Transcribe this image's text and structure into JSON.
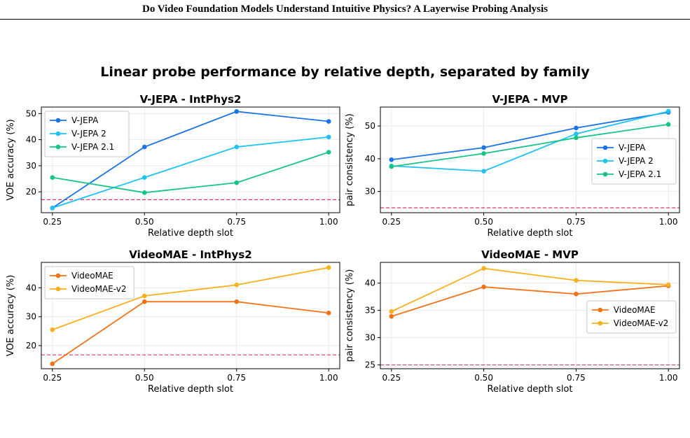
{
  "paper": {
    "header": "Do Video Foundation Models Understand Intuitive Physics? A Layerwise Probing Analysis",
    "caption": ""
  },
  "figure": {
    "suptitle": "Linear probe performance by relative depth, separated by family"
  },
  "chart_data": [
    {
      "type": "line",
      "title": "V-JEPA - IntPhys2",
      "xlabel": "Relative depth slot",
      "ylabel": "VOE accuracy (%)",
      "x": [
        0.25,
        0.5,
        0.75,
        1.0
      ],
      "x_ticks": [
        "0.25",
        "0.50",
        "0.75",
        "1.00"
      ],
      "y_ticks": [
        20,
        30,
        40,
        50
      ],
      "xlim": [
        0.22,
        1.03
      ],
      "ylim": [
        12,
        52.5
      ],
      "chance_line": 17,
      "legend_position": "upper-left",
      "grid": true,
      "series": [
        {
          "name": "V-JEPA",
          "color": "#1a73e8",
          "values": [
            13.8,
            37.2,
            50.8,
            47.0
          ]
        },
        {
          "name": "V-JEPA 2",
          "color": "#1ec3f2",
          "values": [
            13.8,
            25.5,
            37.2,
            41.0
          ]
        },
        {
          "name": "V-JEPA 2.1",
          "color": "#17c486",
          "values": [
            25.5,
            19.7,
            23.5,
            35.2
          ]
        }
      ]
    },
    {
      "type": "line",
      "title": "V-JEPA - MVP",
      "xlabel": "Relative depth slot",
      "ylabel": "pair consistency (%)",
      "x": [
        0.25,
        0.5,
        0.75,
        1.0
      ],
      "x_ticks": [
        "0.25",
        "0.50",
        "0.75",
        "1.00"
      ],
      "y_ticks": [
        30,
        40,
        50
      ],
      "xlim": [
        0.22,
        1.03
      ],
      "ylim": [
        23.5,
        55.8
      ],
      "chance_line": 25,
      "legend_position": "center-right",
      "grid": true,
      "series": [
        {
          "name": "V-JEPA",
          "color": "#1a73e8",
          "values": [
            39.7,
            43.4,
            49.4,
            54.2
          ]
        },
        {
          "name": "V-JEPA 2",
          "color": "#1ec3f2",
          "values": [
            37.8,
            36.2,
            47.6,
            54.5
          ]
        },
        {
          "name": "V-JEPA 2.1",
          "color": "#17c486",
          "values": [
            37.6,
            41.6,
            46.4,
            50.5
          ]
        }
      ]
    },
    {
      "type": "line",
      "title": "VideoMAE - IntPhys2",
      "xlabel": "Relative depth slot",
      "ylabel": "VOE accuracy (%)",
      "x": [
        0.25,
        0.5,
        0.75,
        1.0
      ],
      "x_ticks": [
        "0.25",
        "0.50",
        "0.75",
        "1.00"
      ],
      "y_ticks": [
        20,
        30,
        40
      ],
      "xlim": [
        0.22,
        1.03
      ],
      "ylim": [
        12,
        48.8
      ],
      "chance_line": 16.8,
      "legend_position": "upper-left",
      "grid": true,
      "series": [
        {
          "name": "VideoMAE",
          "color": "#f47216",
          "values": [
            13.7,
            35.2,
            35.2,
            31.3
          ]
        },
        {
          "name": "VideoMAE-v2",
          "color": "#f8b01d",
          "values": [
            25.5,
            37.2,
            41.0,
            47.0
          ]
        }
      ]
    },
    {
      "type": "line",
      "title": "VideoMAE - MVP",
      "xlabel": "Relative depth slot",
      "ylabel": "pair consistency (%)",
      "x": [
        0.25,
        0.5,
        0.75,
        1.0
      ],
      "x_ticks": [
        "0.25",
        "0.50",
        "0.75",
        "1.00"
      ],
      "y_ticks": [
        25,
        30,
        35,
        40
      ],
      "xlim": [
        0.22,
        1.03
      ],
      "ylim": [
        24.3,
        43.8
      ],
      "chance_line": 25,
      "legend_position": "center-right",
      "grid": true,
      "series": [
        {
          "name": "VideoMAE",
          "color": "#f47216",
          "values": [
            33.9,
            39.3,
            38.0,
            39.5
          ]
        },
        {
          "name": "VideoMAE-v2",
          "color": "#f8b01d",
          "values": [
            34.8,
            42.7,
            40.5,
            39.7
          ]
        }
      ]
    }
  ]
}
